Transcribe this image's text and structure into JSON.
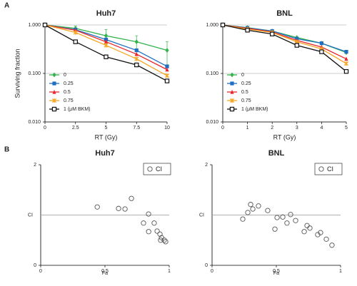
{
  "panel_labels": [
    "A",
    "B"
  ],
  "chart_data": [
    {
      "type": "line",
      "title": "Huh7",
      "xlabel": "RT (Gy)",
      "ylabel": "Surviving fraction",
      "log_y": true,
      "x": [
        0,
        2.5,
        5,
        7.5,
        10
      ],
      "xlim": [
        0,
        10
      ],
      "xticks": [
        0,
        2.5,
        5,
        7.5,
        10
      ],
      "ylim": [
        0.01,
        1
      ],
      "yticks": [
        {
          "value": 0.01,
          "label": "0.010"
        },
        {
          "value": 0.1,
          "label": "0.100"
        },
        {
          "value": 1,
          "label": "1.000"
        }
      ],
      "grid": true,
      "legend": "lower-left",
      "series": [
        {
          "name": "0",
          "color": "#2fb34a",
          "marker": "diamond",
          "values": [
            1,
            0.85,
            0.6,
            0.45,
            0.3
          ],
          "errors": [
            0,
            0.1,
            0.2,
            0.15,
            0.15
          ]
        },
        {
          "name": "0.25",
          "color": "#1f6fc0",
          "marker": "square",
          "values": [
            1,
            0.8,
            0.5,
            0.3,
            0.14
          ]
        },
        {
          "name": "0.5",
          "color": "#e8262b",
          "marker": "triangle",
          "values": [
            1,
            0.78,
            0.45,
            0.25,
            0.12
          ]
        },
        {
          "name": "0.75",
          "color": "#f5a623",
          "marker": "cross",
          "values": [
            1,
            0.7,
            0.38,
            0.2,
            0.09
          ]
        },
        {
          "name": "1  (μM BKM)",
          "color": "#111111",
          "marker": "open-square",
          "values": [
            1,
            0.45,
            0.22,
            0.15,
            0.07
          ]
        }
      ]
    },
    {
      "type": "line",
      "title": "BNL",
      "xlabel": "RT (Gy)",
      "log_y": true,
      "x": [
        0,
        1,
        2,
        3,
        4,
        5
      ],
      "xlim": [
        0,
        5
      ],
      "xticks": [
        0,
        1,
        2,
        3,
        4,
        5
      ],
      "ylim": [
        0.01,
        1
      ],
      "yticks": [
        {
          "value": 0.01,
          "label": "0.010"
        },
        {
          "value": 0.1,
          "label": "0.100"
        },
        {
          "value": 1,
          "label": "1.000"
        }
      ],
      "grid": true,
      "legend": "lower-left",
      "series": [
        {
          "name": "0",
          "color": "#2fb34a",
          "marker": "diamond",
          "values": [
            1,
            0.88,
            0.75,
            0.55,
            0.42,
            0.27
          ]
        },
        {
          "name": "0.25",
          "color": "#1f6fc0",
          "marker": "square",
          "values": [
            1,
            0.87,
            0.75,
            0.52,
            0.42,
            0.28
          ]
        },
        {
          "name": "0.5",
          "color": "#e8262b",
          "marker": "triangle",
          "values": [
            1,
            0.85,
            0.72,
            0.48,
            0.35,
            0.2
          ]
        },
        {
          "name": "0.75",
          "color": "#f5a623",
          "marker": "cross",
          "values": [
            1,
            0.82,
            0.7,
            0.45,
            0.32,
            0.16
          ]
        },
        {
          "name": "1  (μM BKM)",
          "color": "#111111",
          "marker": "open-square",
          "values": [
            1,
            0.78,
            0.65,
            0.38,
            0.28,
            0.11
          ]
        }
      ]
    },
    {
      "type": "scatter",
      "title": "Huh7",
      "xlabel": "Fa",
      "ylabel": "CI",
      "xlim": [
        0,
        1
      ],
      "xticks": [
        0,
        0.5,
        1
      ],
      "ylim": [
        0,
        2
      ],
      "yticks": [
        0,
        2
      ],
      "hline": 1,
      "legend": "upper-right",
      "series": [
        {
          "name": "CI",
          "color": "#555555",
          "x": [
            0.44,
            0.606,
            0.656,
            0.706,
            0.839,
            0.8,
            0.883,
            0.84,
            0.906,
            0.928,
            0.94,
            0.933,
            0.961,
            0.972
          ],
          "values": [
            1.16,
            1.13,
            1.12,
            1.33,
            1.02,
            0.84,
            0.84,
            0.67,
            0.68,
            0.62,
            0.55,
            0.5,
            0.5,
            0.47
          ]
        }
      ]
    },
    {
      "type": "scatter",
      "title": "BNL",
      "xlabel": "Fa",
      "ylabel": "CI",
      "xlim": [
        0,
        1
      ],
      "xticks": [
        0,
        0.5,
        1
      ],
      "ylim": [
        0,
        2
      ],
      "yticks": [
        0,
        2
      ],
      "hline": 1,
      "legend": "upper-right",
      "series": [
        {
          "name": "CI",
          "color": "#555555",
          "x": [
            0.239,
            0.278,
            0.3,
            0.317,
            0.361,
            0.433,
            0.506,
            0.489,
            0.55,
            0.583,
            0.611,
            0.65,
            0.739,
            0.761,
            0.717,
            0.822,
            0.844,
            0.889,
            0.933
          ],
          "values": [
            0.92,
            1.05,
            1.21,
            1.12,
            1.18,
            1.09,
            0.95,
            0.72,
            0.96,
            0.84,
            1.01,
            0.89,
            0.79,
            0.74,
            0.67,
            0.61,
            0.65,
            0.52,
            0.4
          ]
        }
      ]
    }
  ]
}
